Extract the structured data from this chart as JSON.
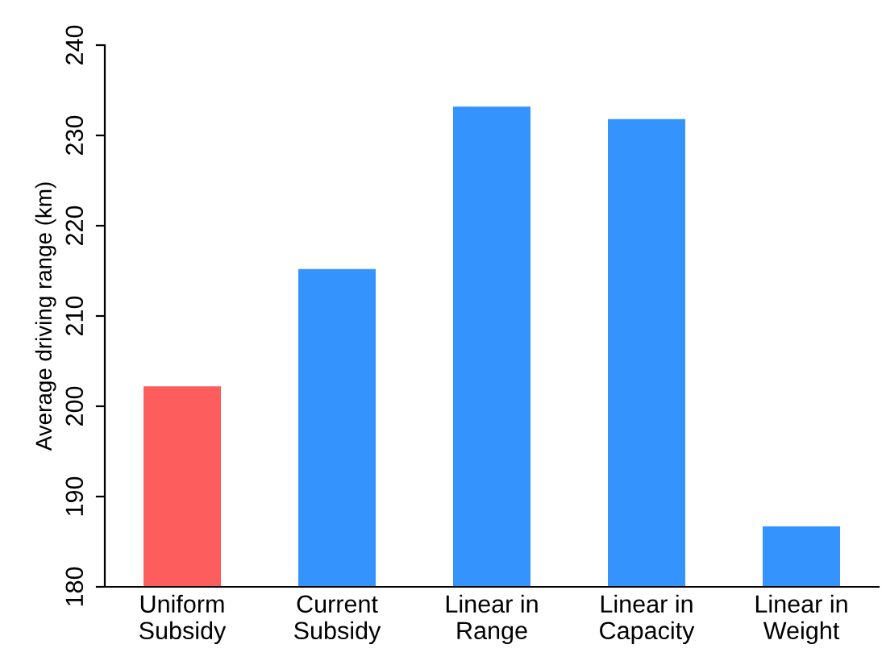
{
  "chart_data": {
    "type": "bar",
    "ylabel": "Average driving range (km)",
    "categories": [
      "Uniform\nSubsidy",
      "Current\nSubsidy",
      "Linear in\nRange",
      "Linear in\nCapacity",
      "Linear in\nWeight"
    ],
    "values": [
      202.2,
      215.2,
      233.2,
      231.8,
      186.7
    ],
    "colors": [
      "#fd5d5d",
      "#3593fd",
      "#3593fd",
      "#3593fd",
      "#3593fd"
    ],
    "ylim": [
      180,
      240
    ],
    "yticks": [
      180,
      190,
      200,
      210,
      220,
      230,
      240
    ],
    "grid": false,
    "legend": false
  }
}
